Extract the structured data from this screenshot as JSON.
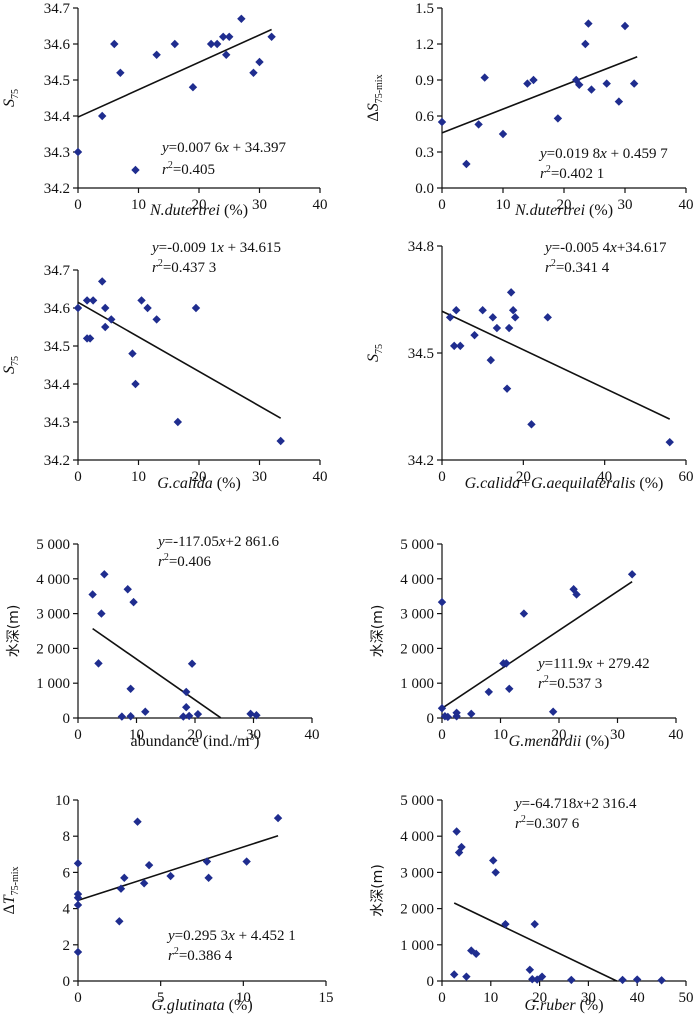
{
  "chart_data": [
    {
      "id": "p1",
      "type": "scatter",
      "xlabel": "N.dutertrei (%)",
      "ylabel": "S75",
      "xlim": [
        0,
        40
      ],
      "ylim": [
        34.2,
        34.7
      ],
      "xticks": [
        "0",
        "10",
        "20",
        "30",
        "40"
      ],
      "yticks": [
        "34.2",
        "34.3",
        "34.4",
        "34.5",
        "34.6",
        "34.7"
      ],
      "points": [
        [
          0,
          34.3
        ],
        [
          4,
          34.4
        ],
        [
          6,
          34.6
        ],
        [
          7,
          34.52
        ],
        [
          9.5,
          34.25
        ],
        [
          13,
          34.57
        ],
        [
          16,
          34.6
        ],
        [
          19,
          34.48
        ],
        [
          22,
          34.6
        ],
        [
          23,
          34.6
        ],
        [
          24,
          34.62
        ],
        [
          24.5,
          34.57
        ],
        [
          25,
          34.62
        ],
        [
          27,
          34.67
        ],
        [
          29,
          34.52
        ],
        [
          30,
          34.55
        ],
        [
          32,
          34.62
        ]
      ],
      "fit": {
        "slope": 0.0076,
        "intercept": 34.397,
        "x_range": [
          0,
          32
        ]
      },
      "equation": [
        "y=0.007 6x + 34.397",
        "r2=0.405"
      ]
    },
    {
      "id": "p2",
      "type": "scatter",
      "xlabel": "N.dutertrei (%)",
      "ylabel": "ΔS75-mix",
      "xlim": [
        0,
        40
      ],
      "ylim": [
        0,
        1.5
      ],
      "xticks": [
        "0",
        "10",
        "20",
        "30",
        "40"
      ],
      "yticks": [
        "0.0",
        "0.3",
        "0.6",
        "0.9",
        "1.2",
        "1.5"
      ],
      "points": [
        [
          0,
          0.55
        ],
        [
          4,
          0.2
        ],
        [
          6,
          0.53
        ],
        [
          7,
          0.92
        ],
        [
          10,
          0.45
        ],
        [
          14,
          0.87
        ],
        [
          15,
          0.9
        ],
        [
          19,
          0.58
        ],
        [
          22,
          0.9
        ],
        [
          22.5,
          0.86
        ],
        [
          23.5,
          1.2
        ],
        [
          24,
          1.37
        ],
        [
          24.5,
          0.82
        ],
        [
          27,
          0.87
        ],
        [
          29,
          0.72
        ],
        [
          30,
          1.35
        ],
        [
          31.5,
          0.87
        ]
      ],
      "fit": {
        "slope": 0.0198,
        "intercept": 0.4597,
        "x_range": [
          0,
          32
        ]
      },
      "equation": [
        "y=0.019 8x + 0.459 7",
        "r2=0.402 1"
      ]
    },
    {
      "id": "p3",
      "type": "scatter",
      "xlabel": "G.calida (%)",
      "ylabel": "S75",
      "xlim": [
        0,
        40
      ],
      "ylim": [
        34.2,
        34.7
      ],
      "xticks": [
        "0",
        "10",
        "20",
        "30",
        "40"
      ],
      "yticks": [
        "34.2",
        "34.3",
        "34.4",
        "34.5",
        "34.6",
        "34.7"
      ],
      "points": [
        [
          0,
          34.6
        ],
        [
          1.5,
          34.62
        ],
        [
          2,
          34.52
        ],
        [
          2.5,
          34.62
        ],
        [
          4,
          34.67
        ],
        [
          4.5,
          34.6
        ],
        [
          4.5,
          34.55
        ],
        [
          5.5,
          34.57
        ],
        [
          9,
          34.48
        ],
        [
          9.5,
          34.4
        ],
        [
          10.5,
          34.62
        ],
        [
          11.5,
          34.6
        ],
        [
          13,
          34.57
        ],
        [
          16.5,
          34.3
        ],
        [
          19.5,
          34.6
        ],
        [
          33.5,
          34.25
        ],
        [
          1.5,
          34.52
        ]
      ],
      "fit": {
        "slope": -0.0091,
        "intercept": 34.615,
        "x_range": [
          0,
          33.5
        ]
      },
      "equation": [
        "y=-0.009 1x + 34.615",
        "r2=0.437 3"
      ]
    },
    {
      "id": "p4",
      "type": "scatter",
      "xlabel": "G.calida+G.aequilateralis (%)",
      "ylabel": "S75",
      "xlim": [
        0,
        60
      ],
      "ylim": [
        34.2,
        34.8
      ],
      "xticks": [
        "0",
        "20",
        "40",
        "60"
      ],
      "yticks": [
        "34.2",
        "34.5",
        "34.8"
      ],
      "points": [
        [
          2,
          34.6
        ],
        [
          3,
          34.52
        ],
        [
          3.5,
          34.62
        ],
        [
          4.5,
          34.52
        ],
        [
          8,
          34.55
        ],
        [
          10,
          34.62
        ],
        [
          12,
          34.48
        ],
        [
          12.5,
          34.6
        ],
        [
          13.5,
          34.57
        ],
        [
          16,
          34.4
        ],
        [
          16.5,
          34.57
        ],
        [
          17,
          34.67
        ],
        [
          17.5,
          34.62
        ],
        [
          18,
          34.6
        ],
        [
          22,
          34.3
        ],
        [
          26,
          34.6
        ],
        [
          56,
          34.25
        ]
      ],
      "fit": {
        "slope": -0.0054,
        "intercept": 34.617,
        "x_range": [
          0,
          56
        ]
      },
      "equation": [
        "y=-0.005 4x+34.617",
        "r2=0.341 4"
      ]
    },
    {
      "id": "p5",
      "type": "scatter",
      "xlabel": "abundance (ind./m3)",
      "ylabel": "水深(m)",
      "xlim": [
        0,
        40
      ],
      "ylim": [
        0,
        5000
      ],
      "xticks": [
        "0",
        "10",
        "20",
        "30",
        "40"
      ],
      "yticks": [
        "0",
        "1 000",
        "2 000",
        "3 000",
        "4 000",
        "5 000"
      ],
      "points": [
        [
          2.5,
          3550
        ],
        [
          3.5,
          1570
        ],
        [
          4,
          3000
        ],
        [
          4.5,
          4130
        ],
        [
          7.5,
          40
        ],
        [
          8.5,
          3700
        ],
        [
          9,
          840
        ],
        [
          9,
          50
        ],
        [
          9.5,
          3330
        ],
        [
          11.5,
          180
        ],
        [
          18,
          40
        ],
        [
          18.5,
          750
        ],
        [
          18.5,
          310
        ],
        [
          19,
          60
        ],
        [
          19.5,
          1560
        ],
        [
          20.5,
          110
        ],
        [
          29.5,
          120
        ],
        [
          30.5,
          80
        ]
      ],
      "fit": {
        "slope": -117.05,
        "intercept": 2861.6,
        "x_range": [
          2.5,
          24.4
        ]
      },
      "equation": [
        "y=-117.05x+2 861.6",
        "r2=0.406"
      ]
    },
    {
      "id": "p6",
      "type": "scatter",
      "xlabel": "G.menardii (%)",
      "ylabel": "水深(m)",
      "xlim": [
        0,
        40
      ],
      "ylim": [
        0,
        5000
      ],
      "xticks": [
        "0",
        "10",
        "20",
        "30",
        "40"
      ],
      "yticks": [
        "0",
        "1 000",
        "2 000",
        "3 000",
        "4 000",
        "5 000"
      ],
      "points": [
        [
          0,
          3330
        ],
        [
          0,
          280
        ],
        [
          0.5,
          50
        ],
        [
          1,
          30
        ],
        [
          2.5,
          50
        ],
        [
          2.5,
          150
        ],
        [
          5,
          120
        ],
        [
          8,
          750
        ],
        [
          10.5,
          1570
        ],
        [
          11,
          1570
        ],
        [
          11.5,
          840
        ],
        [
          14,
          3000
        ],
        [
          19,
          180
        ],
        [
          22.5,
          3700
        ],
        [
          23,
          3550
        ],
        [
          32.5,
          4130
        ]
      ],
      "fit": {
        "slope": 111.9,
        "intercept": 279.42,
        "x_range": [
          0,
          32.5
        ]
      },
      "equation": [
        "y=111.9x + 279.42",
        "r2=0.537 3"
      ]
    },
    {
      "id": "p7",
      "type": "scatter",
      "xlabel": "G.glutinata (%)",
      "ylabel": "ΔT75-mix",
      "xlim": [
        0,
        15
      ],
      "ylim": [
        0,
        10
      ],
      "xticks": [
        "0",
        "5",
        "10",
        "15"
      ],
      "yticks": [
        "0",
        "2",
        "4",
        "6",
        "8",
        "10"
      ],
      "points": [
        [
          0,
          6.5
        ],
        [
          0,
          4.8
        ],
        [
          0,
          4.6
        ],
        [
          0,
          4.2
        ],
        [
          0,
          1.6
        ],
        [
          2.5,
          3.3
        ],
        [
          2.6,
          5.1
        ],
        [
          2.8,
          5.7
        ],
        [
          3.6,
          8.8
        ],
        [
          4,
          5.4
        ],
        [
          4.3,
          6.4
        ],
        [
          5.6,
          5.8
        ],
        [
          7.8,
          6.6
        ],
        [
          7.9,
          5.7
        ],
        [
          10.2,
          6.6
        ],
        [
          12.1,
          9.0
        ]
      ],
      "fit": {
        "slope": 0.2953,
        "intercept": 4.4521,
        "x_range": [
          0,
          12.1
        ]
      },
      "equation": [
        "y=0.295 3x + 4.452 1",
        "r2=0.386 4"
      ]
    },
    {
      "id": "p8",
      "type": "scatter",
      "xlabel": "G.ruber (%)",
      "ylabel": "水深(m)",
      "xlim": [
        0,
        50
      ],
      "ylim": [
        0,
        5000
      ],
      "xticks": [
        "0",
        "10",
        "20",
        "30",
        "40",
        "50"
      ],
      "yticks": [
        "0",
        "1 000",
        "2 000",
        "3 000",
        "4 000",
        "5 000"
      ],
      "points": [
        [
          2.5,
          180
        ],
        [
          3,
          4130
        ],
        [
          3.5,
          3550
        ],
        [
          4,
          3700
        ],
        [
          5,
          120
        ],
        [
          6,
          840
        ],
        [
          7,
          750
        ],
        [
          10.5,
          3330
        ],
        [
          11,
          3000
        ],
        [
          13,
          1570
        ],
        [
          18,
          310
        ],
        [
          18.5,
          50
        ],
        [
          19,
          1570
        ],
        [
          19.5,
          40
        ],
        [
          20.5,
          120
        ],
        [
          26.5,
          30
        ],
        [
          37,
          30
        ],
        [
          40,
          40
        ],
        [
          45,
          20
        ]
      ],
      "fit": {
        "slope": -64.718,
        "intercept": 2316.4,
        "x_range": [
          2.5,
          35.8
        ]
      },
      "equation": [
        "y=-64.718x+2 316.4",
        "r2=0.307 6"
      ]
    }
  ]
}
